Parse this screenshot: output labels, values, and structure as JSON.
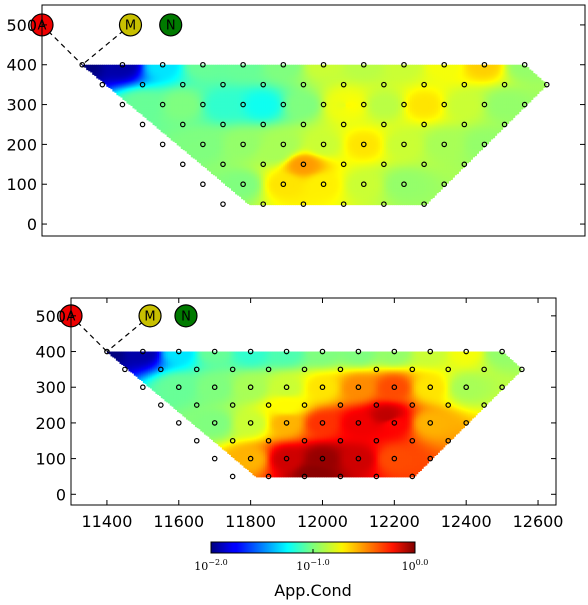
{
  "chart_data": [
    {
      "type": "heatmap",
      "name": "pseudosection-top",
      "title": "",
      "xlabel": "",
      "ylabel": "",
      "xlim": [
        11300,
        12650
      ],
      "ylim": [
        -30,
        550
      ],
      "x_ticks": [],
      "y_ticks": [
        "0",
        "100",
        "200",
        "300",
        "400",
        "500"
      ],
      "y_tick_values": [
        0,
        100,
        200,
        300,
        400,
        500
      ],
      "polygon": [
        [
          11400,
          400
        ],
        [
          12500,
          400
        ],
        [
          12555,
          350
        ],
        [
          12255,
          50
        ],
        [
          11815,
          50
        ],
        [
          11400,
          400
        ]
      ],
      "electrodes": [
        {
          "label": "A",
          "x": 11300,
          "y": 500,
          "color": "#ee0000"
        },
        {
          "label": "M",
          "x": 11520,
          "y": 500,
          "color": "#c8c000"
        },
        {
          "label": "N",
          "x": 11620,
          "y": 500,
          "color": "#007a00"
        }
      ],
      "electrode_lines": [
        [
          11300,
          500,
          11400,
          400
        ],
        [
          11520,
          500,
          11400,
          400
        ]
      ],
      "anchors": [
        {
          "x": 11400,
          "y": 400,
          "v": 0.01
        },
        {
          "x": 11500,
          "y": 400,
          "v": 0.012
        },
        {
          "x": 11600,
          "y": 400,
          "v": 0.05
        },
        {
          "x": 11700,
          "y": 400,
          "v": 0.09
        },
        {
          "x": 11800,
          "y": 400,
          "v": 0.09
        },
        {
          "x": 11900,
          "y": 400,
          "v": 0.1
        },
        {
          "x": 12000,
          "y": 400,
          "v": 0.14
        },
        {
          "x": 12100,
          "y": 400,
          "v": 0.13
        },
        {
          "x": 12200,
          "y": 400,
          "v": 0.14
        },
        {
          "x": 12300,
          "y": 400,
          "v": 0.17
        },
        {
          "x": 12400,
          "y": 400,
          "v": 0.22
        },
        {
          "x": 12500,
          "y": 400,
          "v": 0.11
        },
        {
          "x": 11550,
          "y": 300,
          "v": 0.09
        },
        {
          "x": 11650,
          "y": 300,
          "v": 0.1
        },
        {
          "x": 11750,
          "y": 300,
          "v": 0.07
        },
        {
          "x": 11850,
          "y": 300,
          "v": 0.06
        },
        {
          "x": 11950,
          "y": 300,
          "v": 0.1
        },
        {
          "x": 12050,
          "y": 300,
          "v": 0.16
        },
        {
          "x": 12150,
          "y": 300,
          "v": 0.13
        },
        {
          "x": 12250,
          "y": 300,
          "v": 0.2
        },
        {
          "x": 12350,
          "y": 300,
          "v": 0.14
        },
        {
          "x": 12450,
          "y": 300,
          "v": 0.11
        },
        {
          "x": 11700,
          "y": 200,
          "v": 0.1
        },
        {
          "x": 11800,
          "y": 200,
          "v": 0.11
        },
        {
          "x": 11900,
          "y": 200,
          "v": 0.12
        },
        {
          "x": 12000,
          "y": 200,
          "v": 0.14
        },
        {
          "x": 12100,
          "y": 200,
          "v": 0.2
        },
        {
          "x": 12200,
          "y": 200,
          "v": 0.14
        },
        {
          "x": 12300,
          "y": 200,
          "v": 0.12
        },
        {
          "x": 12400,
          "y": 200,
          "v": 0.11
        },
        {
          "x": 11800,
          "y": 100,
          "v": 0.1
        },
        {
          "x": 11900,
          "y": 100,
          "v": 0.2
        },
        {
          "x": 12000,
          "y": 100,
          "v": 0.19
        },
        {
          "x": 12100,
          "y": 100,
          "v": 0.14
        },
        {
          "x": 12200,
          "y": 100,
          "v": 0.11
        },
        {
          "x": 11950,
          "y": 150,
          "v": 0.28
        },
        {
          "x": 12060,
          "y": 300,
          "v": 0.18
        },
        {
          "x": 11880,
          "y": 180,
          "v": 0.12
        }
      ],
      "points_x": [
        11400,
        11500,
        11600,
        11700,
        11800,
        11900,
        12000,
        12100,
        12200,
        12300,
        12400,
        12500,
        11450,
        11550,
        11650,
        11750,
        11850,
        11950,
        12050,
        12150,
        12250,
        12350,
        12450,
        12555,
        11500,
        11600,
        11700,
        11800,
        11900,
        12000,
        12100,
        12200,
        12300,
        12400,
        12500,
        11550,
        11650,
        11750,
        11850,
        11950,
        12050,
        12150,
        12250,
        12350,
        12450,
        11600,
        11700,
        11800,
        11900,
        12000,
        12100,
        12200,
        12300,
        12400,
        11650,
        11750,
        11850,
        11950,
        12050,
        12150,
        12250,
        12350,
        11700,
        11800,
        11900,
        12000,
        12100,
        12200,
        12300,
        11750,
        11850,
        11950,
        12050,
        12150,
        12250
      ],
      "points_y": [
        400,
        400,
        400,
        400,
        400,
        400,
        400,
        400,
        400,
        400,
        400,
        400,
        350,
        350,
        350,
        350,
        350,
        350,
        350,
        350,
        350,
        350,
        350,
        350,
        300,
        300,
        300,
        300,
        300,
        300,
        300,
        300,
        300,
        300,
        300,
        250,
        250,
        250,
        250,
        250,
        250,
        250,
        250,
        250,
        250,
        200,
        200,
        200,
        200,
        200,
        200,
        200,
        200,
        200,
        150,
        150,
        150,
        150,
        150,
        150,
        150,
        150,
        100,
        100,
        100,
        100,
        100,
        100,
        100,
        50,
        50,
        50,
        50,
        50,
        50
      ]
    },
    {
      "type": "heatmap",
      "name": "pseudosection-bottom",
      "title": "",
      "xlabel": "",
      "ylabel": "",
      "xlim": [
        11300,
        12650
      ],
      "ylim": [
        -30,
        550
      ],
      "x_ticks": [
        "11400",
        "11600",
        "11800",
        "12000",
        "12200",
        "12400",
        "12600"
      ],
      "x_tick_values": [
        11400,
        11600,
        11800,
        12000,
        12200,
        12400,
        12600
      ],
      "y_ticks": [
        "0",
        "100",
        "200",
        "300",
        "400",
        "500"
      ],
      "y_tick_values": [
        0,
        100,
        200,
        300,
        400,
        500
      ],
      "polygon": [
        [
          11400,
          400
        ],
        [
          12500,
          400
        ],
        [
          12555,
          350
        ],
        [
          12255,
          50
        ],
        [
          11815,
          50
        ],
        [
          11400,
          400
        ]
      ],
      "electrodes": [
        {
          "label": "A",
          "x": 11300,
          "y": 500,
          "color": "#ee0000"
        },
        {
          "label": "M",
          "x": 11520,
          "y": 500,
          "color": "#c8c000"
        },
        {
          "label": "N",
          "x": 11620,
          "y": 500,
          "color": "#007a00"
        }
      ],
      "electrode_lines": [
        [
          11300,
          500,
          11400,
          400
        ],
        [
          11520,
          500,
          11400,
          400
        ]
      ],
      "anchors": [
        {
          "x": 11400,
          "y": 400,
          "v": 0.01
        },
        {
          "x": 11500,
          "y": 400,
          "v": 0.012
        },
        {
          "x": 11600,
          "y": 400,
          "v": 0.05
        },
        {
          "x": 11700,
          "y": 400,
          "v": 0.09
        },
        {
          "x": 11800,
          "y": 400,
          "v": 0.07
        },
        {
          "x": 11900,
          "y": 400,
          "v": 0.08
        },
        {
          "x": 12000,
          "y": 400,
          "v": 0.1
        },
        {
          "x": 12100,
          "y": 400,
          "v": 0.1
        },
        {
          "x": 12200,
          "y": 400,
          "v": 0.11
        },
        {
          "x": 12300,
          "y": 400,
          "v": 0.14
        },
        {
          "x": 12400,
          "y": 400,
          "v": 0.17
        },
        {
          "x": 12500,
          "y": 400,
          "v": 0.11
        },
        {
          "x": 11600,
          "y": 300,
          "v": 0.09
        },
        {
          "x": 11700,
          "y": 300,
          "v": 0.1
        },
        {
          "x": 11800,
          "y": 300,
          "v": 0.12
        },
        {
          "x": 11900,
          "y": 300,
          "v": 0.14
        },
        {
          "x": 12000,
          "y": 300,
          "v": 0.2
        },
        {
          "x": 12100,
          "y": 300,
          "v": 0.3
        },
        {
          "x": 12200,
          "y": 300,
          "v": 0.4
        },
        {
          "x": 12300,
          "y": 300,
          "v": 0.2
        },
        {
          "x": 12400,
          "y": 300,
          "v": 0.12
        },
        {
          "x": 11700,
          "y": 200,
          "v": 0.1
        },
        {
          "x": 11800,
          "y": 200,
          "v": 0.14
        },
        {
          "x": 11900,
          "y": 200,
          "v": 0.25
        },
        {
          "x": 12000,
          "y": 200,
          "v": 0.45
        },
        {
          "x": 12100,
          "y": 200,
          "v": 0.6
        },
        {
          "x": 12200,
          "y": 200,
          "v": 0.55
        },
        {
          "x": 12300,
          "y": 200,
          "v": 0.25
        },
        {
          "x": 11800,
          "y": 100,
          "v": 0.25
        },
        {
          "x": 11900,
          "y": 100,
          "v": 0.7
        },
        {
          "x": 12000,
          "y": 100,
          "v": 0.9
        },
        {
          "x": 12100,
          "y": 100,
          "v": 0.7
        },
        {
          "x": 12200,
          "y": 100,
          "v": 0.4
        },
        {
          "x": 11980,
          "y": 60,
          "v": 0.95
        },
        {
          "x": 12180,
          "y": 220,
          "v": 0.75
        },
        {
          "x": 11900,
          "y": 250,
          "v": 0.18
        }
      ],
      "points_x": [
        11400,
        11500,
        11600,
        11700,
        11800,
        11900,
        12000,
        12100,
        12200,
        12300,
        12400,
        12500,
        11450,
        11550,
        11650,
        11750,
        11850,
        11950,
        12050,
        12150,
        12250,
        12350,
        12450,
        12555,
        11500,
        11600,
        11700,
        11800,
        11900,
        12000,
        12100,
        12200,
        12300,
        12400,
        12500,
        11550,
        11650,
        11750,
        11850,
        11950,
        12050,
        12150,
        12250,
        12350,
        12450,
        11600,
        11700,
        11800,
        11900,
        12000,
        12100,
        12200,
        12300,
        12400,
        11650,
        11750,
        11850,
        11950,
        12050,
        12150,
        12250,
        12350,
        11700,
        11800,
        11900,
        12000,
        12100,
        12200,
        12300,
        11750,
        11850,
        11950,
        12050,
        12150,
        12250
      ],
      "points_y": [
        400,
        400,
        400,
        400,
        400,
        400,
        400,
        400,
        400,
        400,
        400,
        400,
        350,
        350,
        350,
        350,
        350,
        350,
        350,
        350,
        350,
        350,
        350,
        350,
        300,
        300,
        300,
        300,
        300,
        300,
        300,
        300,
        300,
        300,
        300,
        250,
        250,
        250,
        250,
        250,
        250,
        250,
        250,
        250,
        250,
        200,
        200,
        200,
        200,
        200,
        200,
        200,
        200,
        200,
        150,
        150,
        150,
        150,
        150,
        150,
        150,
        150,
        100,
        100,
        100,
        100,
        100,
        100,
        100,
        50,
        50,
        50,
        50,
        50,
        50
      ]
    }
  ],
  "colorbar": {
    "label": "App.Cond",
    "scale": "log",
    "range": [
      0.01,
      1.0
    ],
    "colormap": "jet",
    "ticks": [
      {
        "base": "10",
        "exp": "−2.0",
        "value": 0.01
      },
      {
        "base": "10",
        "exp": "−1.0",
        "value": 0.1
      },
      {
        "base": "10",
        "exp": "0.0",
        "value": 1.0
      }
    ]
  }
}
